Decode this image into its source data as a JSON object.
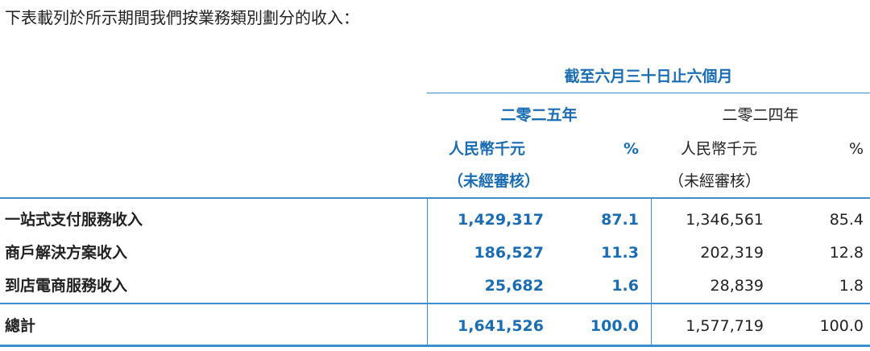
{
  "intro": "下表載列於所示期間我們按業務類別劃分的收入：",
  "header": {
    "period": "截至六月三十日止六個月",
    "years": [
      {
        "year": "二零二五年",
        "amount_label": "人民幣千元",
        "audit": "（未經審核）",
        "pct_label": "%"
      },
      {
        "year": "二零二四年",
        "amount_label": "人民幣千元",
        "audit": "（未經審核）",
        "pct_label": "%"
      }
    ]
  },
  "rows": [
    {
      "label": "一站式支付服務收入",
      "v2025": "1,429,317",
      "p2025": "87.1",
      "v2024": "1,346,561",
      "p2024": "85.4"
    },
    {
      "label": "商戶解決方案收入",
      "v2025": "186,527",
      "p2025": "11.3",
      "v2024": "202,319",
      "p2024": "12.8"
    },
    {
      "label": "到店電商服務收入",
      "v2025": "25,682",
      "p2025": "1.6",
      "v2024": "28,839",
      "p2024": "1.8"
    }
  ],
  "total": {
    "label": "總計",
    "v2025": "1,641,526",
    "p2025": "100.0",
    "v2024": "1,577,719",
    "p2024": "100.0"
  },
  "colors": {
    "accent": "#1b6db3",
    "rule": "#3d8ed0"
  }
}
